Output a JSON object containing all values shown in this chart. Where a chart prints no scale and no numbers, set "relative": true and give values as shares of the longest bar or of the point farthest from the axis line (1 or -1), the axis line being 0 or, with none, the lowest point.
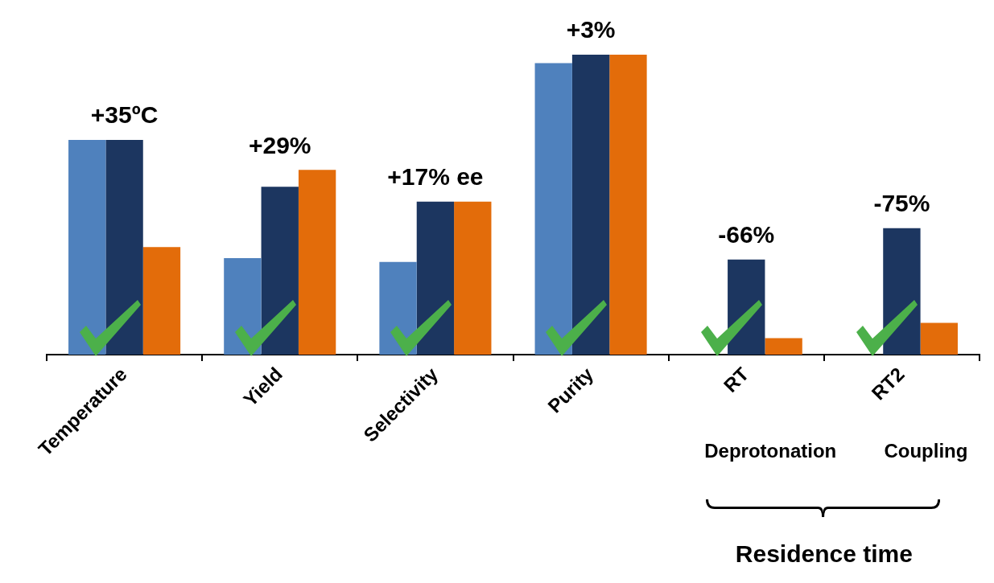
{
  "chart_data": {
    "type": "bar",
    "relative": true,
    "legend": false,
    "grid": false,
    "categories": [
      "Temperature",
      "Yield",
      "Selectivity",
      "Purity",
      "RT",
      "RT2"
    ],
    "series": [
      {
        "color": "#4f81bd",
        "values": [
          0.716,
          0.322,
          0.309,
          0.972,
          null,
          null
        ]
      },
      {
        "color": "#1c3660",
        "values": [
          0.716,
          0.56,
          0.51,
          1,
          0.317,
          0.422
        ]
      },
      {
        "color": "#e36c0a",
        "values": [
          0.359,
          0.616,
          0.51,
          1,
          0.055,
          0.106
        ]
      }
    ],
    "annotations": [
      "+35ºC",
      "+29%",
      "+17% ee",
      "+3%",
      "-66%",
      "-75%",
      "Deprotonation",
      "Coupling",
      "Residence time"
    ]
  }
}
